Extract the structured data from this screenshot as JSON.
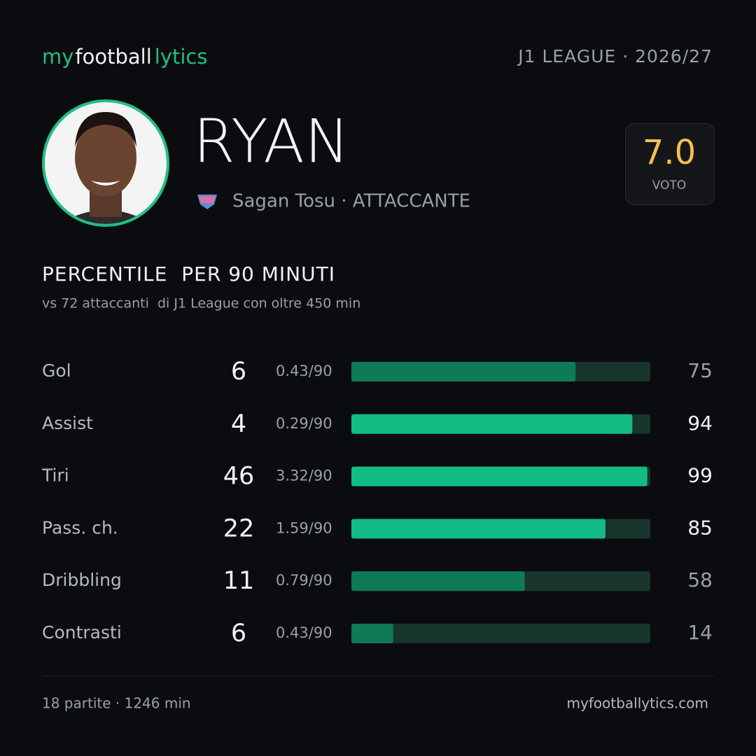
{
  "header": {
    "logo": [
      "my",
      "football",
      "lytics"
    ],
    "league": "J1 LEAGUE · 2026/27"
  },
  "player": {
    "name": "RYAN",
    "team_role": "Sagan Tosu · ATTACCANTE",
    "rating": "7.0",
    "rating_label": "VOTO"
  },
  "section": {
    "title": "PERCENTILE  PER 90 MINUTI",
    "subtitle": "vs 72 attaccanti  di J1 League con oltre 450 min"
  },
  "stats": {
    "xlim": [
      0,
      100
    ],
    "rows": [
      {
        "label": "Gol",
        "count": 6,
        "per90": "0.43/90",
        "percentile": 75,
        "highlight": false
      },
      {
        "label": "Assist",
        "count": 4,
        "per90": "0.29/90",
        "percentile": 94,
        "highlight": true
      },
      {
        "label": "Tiri",
        "count": 46,
        "per90": "3.32/90",
        "percentile": 99,
        "highlight": true
      },
      {
        "label": "Pass. ch.",
        "count": 22,
        "per90": "1.59/90",
        "percentile": 85,
        "highlight": true
      },
      {
        "label": "Dribbling",
        "count": 11,
        "per90": "0.79/90",
        "percentile": 58,
        "highlight": false
      },
      {
        "label": "Contrasti",
        "count": 6,
        "per90": "0.43/90",
        "percentile": 14,
        "highlight": false
      }
    ]
  },
  "footer": {
    "summary": "18 partite · 1246 min",
    "site": "myfootballytics.com"
  }
}
